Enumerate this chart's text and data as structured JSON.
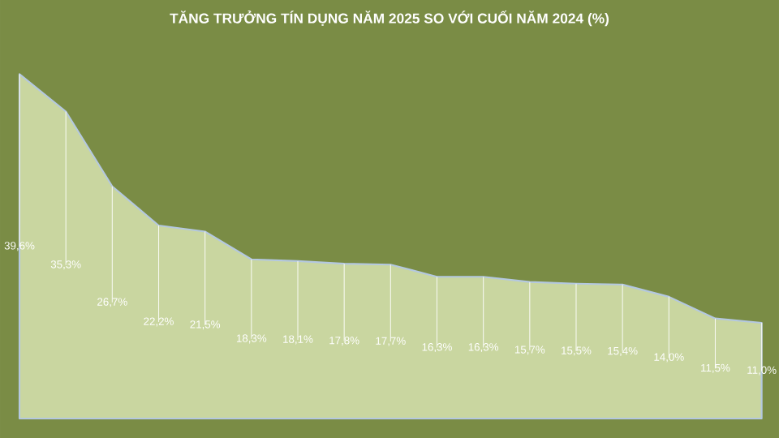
{
  "chart_data": {
    "type": "area",
    "title": "TĂNG TRƯỞNG TÍN DỤNG NĂM 2025 SO VỚI CUỐI NĂM 2024 (%)",
    "categories": [
      null,
      null,
      null,
      null,
      null,
      null,
      null,
      null,
      null,
      null,
      null,
      null,
      null,
      null,
      null,
      null,
      null
    ],
    "values": [
      39.6,
      35.3,
      26.7,
      22.2,
      21.5,
      18.3,
      18.1,
      17.8,
      17.7,
      16.3,
      16.3,
      15.7,
      15.5,
      15.4,
      14.0,
      11.5,
      11.0
    ],
    "value_labels": [
      "39,6%",
      "35,3%",
      "26,7%",
      "22,2%",
      "21,5%",
      "18,3%",
      "18,1%",
      "17,8%",
      "17,7%",
      "16,3%",
      "16,3%",
      "15,7%",
      "15,5%",
      "15,4%",
      "14,0%",
      "11,5%",
      "11,0%"
    ],
    "color": "#c9d6a0"
  }
}
